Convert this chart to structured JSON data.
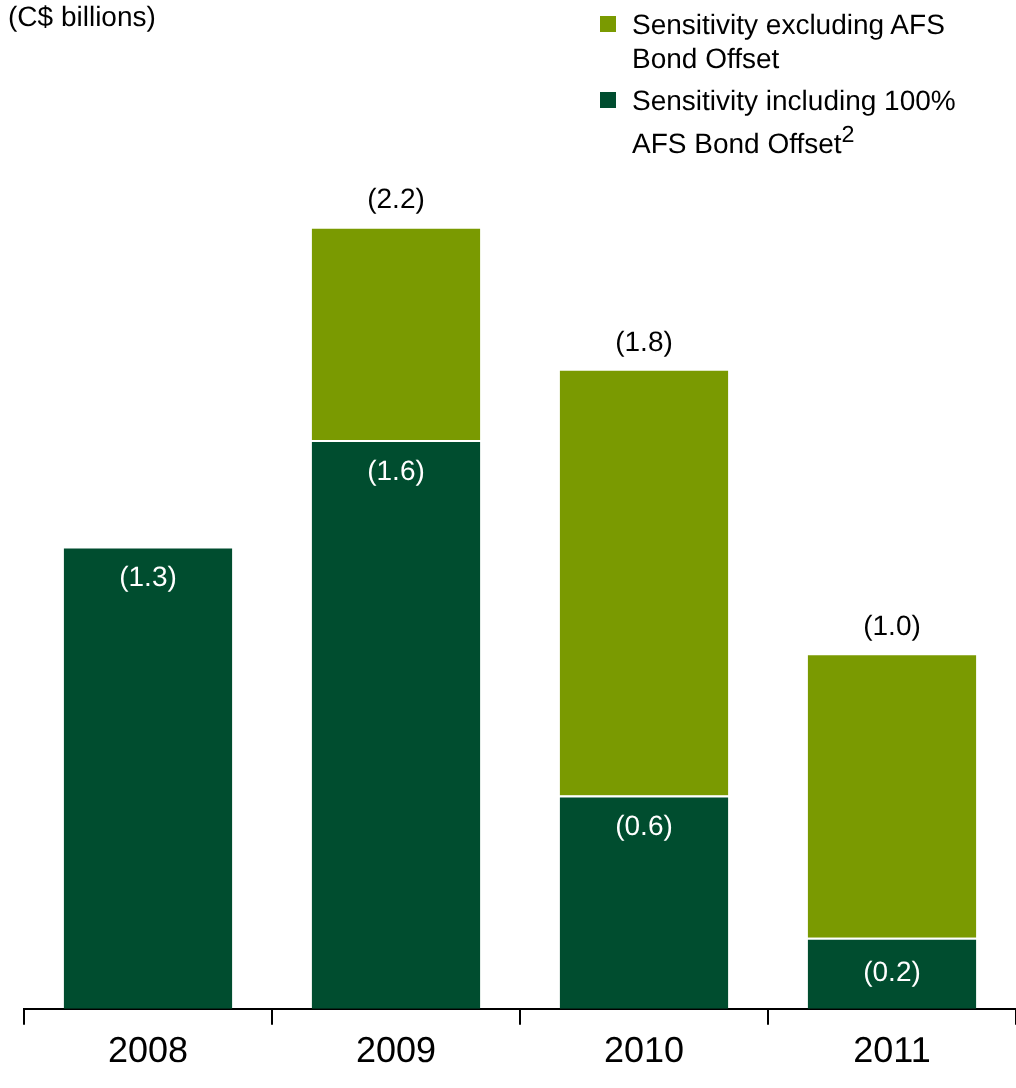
{
  "chart_data": {
    "type": "bar",
    "annotations": [
      "(C$ billions)"
    ],
    "categories": [
      "2008",
      "2009",
      "2010",
      "2011"
    ],
    "stacked": true,
    "legend": "top right",
    "series": [
      {
        "name": "Sensitivity including 100% AFS Bond Offset$^{2}$",
        "color": "#004d2f",
        "values": [
          1.3,
          1.6,
          0.6,
          0.2
        ],
        "value_labels": [
          "(1.3)",
          "(1.6)",
          "(0.6)",
          "(0.2)"
        ]
      },
      {
        "name": "Sensitivity excluding AFS Bond Offset",
        "color": "#7a9a01",
        "values": [
          null,
          0.6,
          1.2,
          0.8
        ]
      }
    ],
    "totals": [
      null,
      "(2.2)",
      "(1.8)",
      "(1.0)"
    ]
  }
}
